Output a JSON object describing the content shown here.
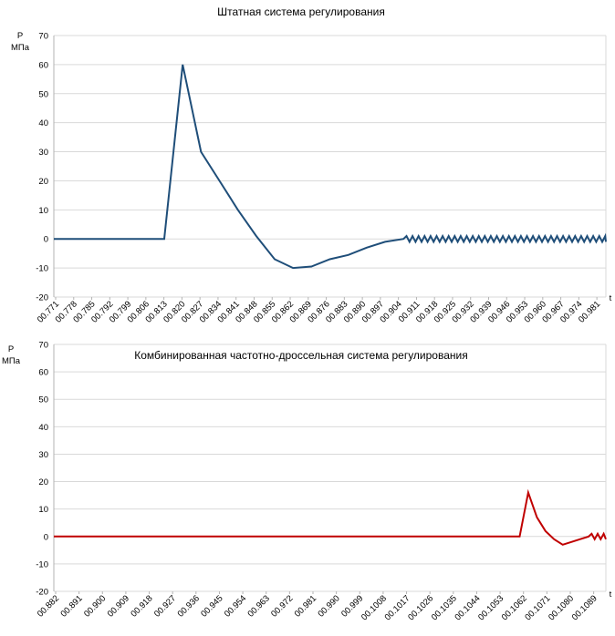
{
  "chart_data": [
    {
      "type": "line",
      "title": "Штатная система регулирования",
      "ylabel": "P",
      "yunit": "МПа",
      "xlabel": "t",
      "ylim": [
        -20,
        70
      ],
      "yticks": [
        "70",
        "60",
        "50",
        "40",
        "30",
        "20",
        "10",
        "0",
        "-10",
        "-20"
      ],
      "grid": true,
      "color": "#1f4e79",
      "xticks": [
        "00.771",
        "00.778",
        "00.785",
        "00.792",
        "00.799",
        "00.806",
        "00.813",
        "00.820",
        "00.827",
        "00.834",
        "00.841",
        "00.848",
        "00.855",
        "00.862",
        "00.869",
        "00.876",
        "00.883",
        "00.890",
        "00.897",
        "00.904",
        "00.911",
        "00.918",
        "00.925",
        "00.932",
        "00.939",
        "00.946",
        "00.953",
        "00.960",
        "00.967",
        "00.974",
        "00.981"
      ],
      "series": [
        {
          "values": [
            0,
            0,
            0,
            0,
            0,
            0,
            0,
            60,
            30,
            20,
            10,
            1,
            -7,
            -10,
            -9.5,
            -7,
            -5.5,
            -3,
            -1,
            0,
            0.5,
            0,
            0,
            0,
            0,
            0,
            0,
            0,
            0,
            0,
            0
          ],
          "oscillation_from": 19,
          "oscillation_amplitude": 1
        }
      ]
    },
    {
      "type": "line",
      "title": "Комбинированная частотно-дроссельная система регулирования",
      "ylabel": "P",
      "yunit": "МПа",
      "xlabel": "t",
      "ylim": [
        -20,
        70
      ],
      "yticks": [
        "70",
        "60",
        "50",
        "40",
        "30",
        "20",
        "10",
        "0",
        "-10",
        "-20"
      ],
      "grid": true,
      "color": "#c00000",
      "xticks": [
        "00.882",
        "00.891",
        "00.900",
        "00.909",
        "00.918",
        "00.927",
        "00.936",
        "00.945",
        "00.954",
        "00.963",
        "00.972",
        "00.981",
        "00.990",
        "00.999",
        "00.1008",
        "00.1017",
        "00.1026",
        "00.1035",
        "00.1044",
        "00.1053",
        "00.1062",
        "00.1071",
        "00.1080",
        "00.1089"
      ],
      "series": [
        {
          "values": [
            0,
            0,
            0,
            0,
            0,
            0,
            0,
            0,
            0,
            0,
            0,
            0,
            0,
            0,
            0,
            0,
            0,
            0,
            0,
            0,
            0,
            0,
            0,
            0,
            0,
            0,
            0,
            0,
            0,
            0,
            0,
            0,
            0,
            0,
            0,
            0,
            0,
            0,
            0,
            0,
            0,
            0,
            0,
            0,
            0,
            0,
            0,
            0,
            0,
            0,
            0,
            0,
            0,
            0,
            0,
            16,
            7,
            2,
            -1,
            -3,
            -2,
            -1,
            0,
            0.5,
            0
          ],
          "oscillation_from": 62,
          "oscillation_amplitude": 1
        }
      ]
    }
  ]
}
